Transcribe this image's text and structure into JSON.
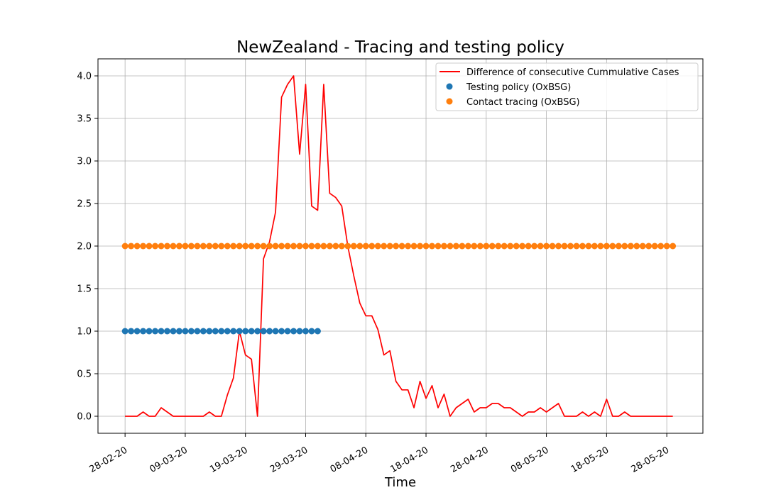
{
  "chart_data": {
    "type": "line",
    "title": "NewZealand - Tracing and testing policy",
    "xlabel": "Time",
    "ylabel": "",
    "x_tick_labels": [
      "28-02-20",
      "09-03-20",
      "19-03-20",
      "29-03-20",
      "08-04-20",
      "18-04-20",
      "28-04-20",
      "08-05-20",
      "18-05-20",
      "28-05-20"
    ],
    "y_tick_labels": [
      "0.0",
      "0.5",
      "1.0",
      "1.5",
      "2.0",
      "2.5",
      "3.0",
      "3.5",
      "4.0"
    ],
    "ylim": [
      -0.2,
      4.2
    ],
    "xlim_days": [
      -4.5,
      96
    ],
    "grid": true,
    "legend_position": "upper right",
    "series": [
      {
        "name": "Difference of consecutive Cummulative Cases",
        "kind": "line",
        "color": "#ff0000",
        "start_date": "28-02-20",
        "values": [
          0,
          0,
          0,
          0.05,
          0,
          0,
          0.1,
          0.05,
          0,
          0,
          0,
          0,
          0,
          0,
          0.05,
          0,
          0,
          0.25,
          0.45,
          1.0,
          0.72,
          0.67,
          0,
          1.85,
          2.05,
          2.4,
          3.75,
          3.9,
          4.0,
          3.08,
          3.9,
          2.47,
          2.42,
          3.9,
          2.62,
          2.57,
          2.47,
          2.0,
          1.65,
          1.33,
          1.18,
          1.18,
          1.02,
          0.72,
          0.77,
          0.41,
          0.31,
          0.31,
          0.1,
          0.41,
          0.21,
          0.36,
          0.1,
          0.26,
          0,
          0.1,
          0.15,
          0.2,
          0.05,
          0.1,
          0.1,
          0.15,
          0.15,
          0.1,
          0.1,
          0.05,
          0,
          0.05,
          0.05,
          0.1,
          0.05,
          0.1,
          0.15,
          0,
          0,
          0,
          0.05,
          0,
          0.05,
          0,
          0.2,
          0,
          0,
          0.05,
          0,
          0,
          0,
          0,
          0,
          0,
          0,
          0
        ]
      },
      {
        "name": "Testing policy (OxBSG)",
        "kind": "points",
        "color": "#1f77b4",
        "start_date": "28-02-20",
        "values": [
          1,
          1,
          1,
          1,
          1,
          1,
          1,
          1,
          1,
          1,
          1,
          1,
          1,
          1,
          1,
          1,
          1,
          1,
          1,
          1,
          1,
          1,
          1,
          1,
          1,
          1,
          1,
          1,
          1,
          1,
          1,
          1,
          1
        ]
      },
      {
        "name": "Contact tracing (OxBSG)",
        "kind": "points",
        "color": "#ff7f0e",
        "start_date": "28-02-20",
        "values": [
          2,
          2,
          2,
          2,
          2,
          2,
          2,
          2,
          2,
          2,
          2,
          2,
          2,
          2,
          2,
          2,
          2,
          2,
          2,
          2,
          2,
          2,
          2,
          2,
          2,
          2,
          2,
          2,
          2,
          2,
          2,
          2,
          2,
          2,
          2,
          2,
          2,
          2,
          2,
          2,
          2,
          2,
          2,
          2,
          2,
          2,
          2,
          2,
          2,
          2,
          2,
          2,
          2,
          2,
          2,
          2,
          2,
          2,
          2,
          2,
          2,
          2,
          2,
          2,
          2,
          2,
          2,
          2,
          2,
          2,
          2,
          2,
          2,
          2,
          2,
          2,
          2,
          2,
          2,
          2,
          2,
          2,
          2,
          2,
          2,
          2,
          2,
          2,
          2,
          2,
          2,
          2
        ]
      }
    ]
  }
}
